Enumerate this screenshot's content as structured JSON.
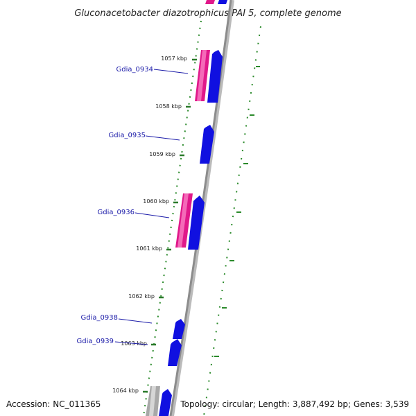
{
  "title": "Gluconacetobacter diazotrophicus PAI 5, complete genome",
  "accession": "Accession: NC_011365",
  "summary": "Topology: circular; Length: 3,887,492 bp; Genes: 3,539",
  "colors": {
    "forward_gene": "#1010e0",
    "reverse_gene": "#e0188a",
    "other_feature": "#a8a8a8",
    "backbone": "#8c8c8c",
    "gc_dots": "#2a8a2a",
    "gene_label": "#1a1aa8"
  },
  "kbp_ticks": [
    "1057 kbp",
    "1058 kbp",
    "1059 kbp",
    "1060 kbp",
    "1061 kbp",
    "1062 kbp",
    "1063 kbp",
    "1064 kbp"
  ],
  "gene_labels": [
    "Gdia_0934",
    "Gdia_0935",
    "Gdia_0936",
    "Gdia_0938",
    "Gdia_0939"
  ]
}
